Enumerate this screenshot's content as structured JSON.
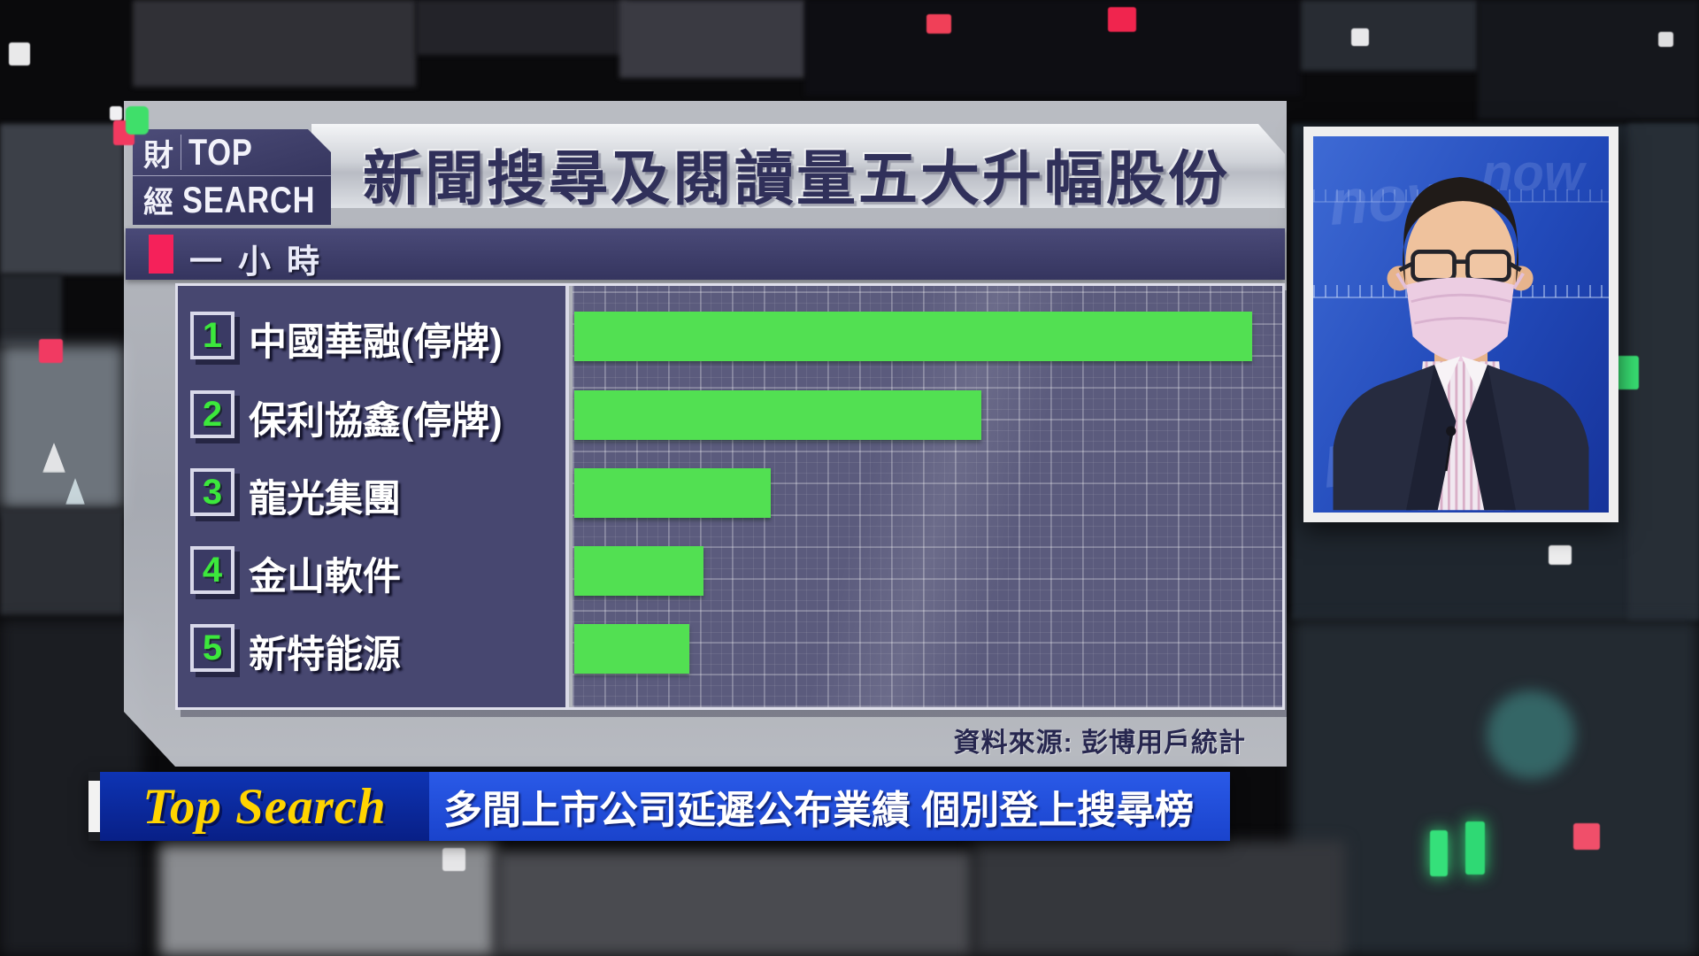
{
  "program": {
    "logo": {
      "line1_cjk": "財",
      "line1_en": "TOP",
      "line2_cjk": "經",
      "line2_en": "SEARCH"
    }
  },
  "header": {
    "title": "新聞搜尋及閱讀量五大升幅股份"
  },
  "chart_data": {
    "type": "bar",
    "orientation": "horizontal",
    "title": "新聞搜尋及閱讀量五大升幅股份",
    "period_tab": "一小時",
    "categories": [
      "中國華融(停牌)",
      "保利協鑫(停牌)",
      "龍光集團",
      "金山軟件",
      "新特能源"
    ],
    "ranks": [
      "1",
      "2",
      "3",
      "4",
      "5"
    ],
    "values_relative": [
      100,
      60,
      29,
      19,
      17
    ],
    "value_note": "no numeric axis shown; values are bar lengths relative to longest bar = 100",
    "bar_color": "#52e052",
    "grid": true,
    "legend": null,
    "source": "資料來源: 彭博用戶統計"
  },
  "ticker": {
    "badge": "Top Search",
    "headline": "多間上市公司延遲公布業績 個別登上搜尋榜"
  },
  "video": {
    "watermark": "now"
  },
  "colors": {
    "accent_green": "#52e052",
    "accent_red": "#f5215a",
    "panel_navy": "#474770",
    "title_navy": "#30305a",
    "ticker_blue": "#1d4ed8",
    "ticker_yellow": "#ffd400"
  }
}
